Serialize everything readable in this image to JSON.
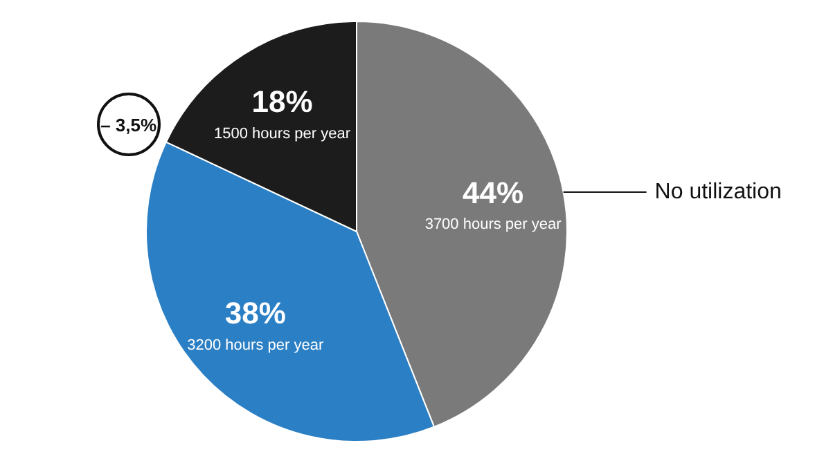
{
  "chart_data": {
    "type": "pie",
    "categories": [
      "No utilization",
      null,
      null
    ],
    "values": [
      44,
      38,
      18
    ],
    "colors": [
      "#7a7a7a",
      "#2b7fc4",
      "#1c1c1c"
    ],
    "value_labels": [
      "44%",
      "38%",
      "18%"
    ],
    "annotations": [
      "3700 hours per year",
      "3200 hours per year",
      "1500 hours per year",
      "– 3,5%"
    ]
  }
}
